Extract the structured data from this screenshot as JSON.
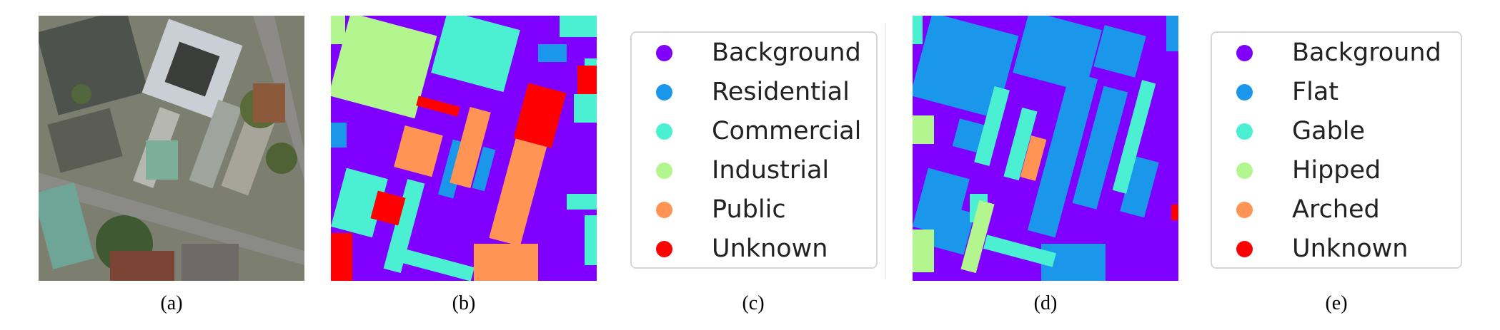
{
  "colors": {
    "background": "#7f00ff",
    "residential": "#1a97eb",
    "commercial": "#4bf0d2",
    "industrial": "#b3f58e",
    "public": "#ff9454",
    "unknown": "#ff0000"
  },
  "panels": {
    "a": {
      "caption": "(a)",
      "content": "aerial-rgb-image"
    },
    "b": {
      "caption": "(b)",
      "content": "building-function-segmentation-map"
    },
    "c": {
      "caption": "(c)",
      "legend": [
        {
          "label": "Background",
          "color": "#7f00ff"
        },
        {
          "label": "Residential",
          "color": "#1a97eb"
        },
        {
          "label": "Commercial",
          "color": "#4bf0d2"
        },
        {
          "label": "Industrial",
          "color": "#b3f58e"
        },
        {
          "label": "Public",
          "color": "#ff9454"
        },
        {
          "label": "Unknown",
          "color": "#ff0000"
        }
      ]
    },
    "d": {
      "caption": "(d)",
      "content": "roof-type-segmentation-map"
    },
    "e": {
      "caption": "(e)",
      "legend": [
        {
          "label": "Background",
          "color": "#7f00ff"
        },
        {
          "label": "Flat",
          "color": "#1a97eb"
        },
        {
          "label": "Gable",
          "color": "#4bf0d2"
        },
        {
          "label": "Hipped",
          "color": "#b3f58e"
        },
        {
          "label": "Arched",
          "color": "#ff9454"
        },
        {
          "label": "Unknown",
          "color": "#ff0000"
        }
      ]
    }
  }
}
